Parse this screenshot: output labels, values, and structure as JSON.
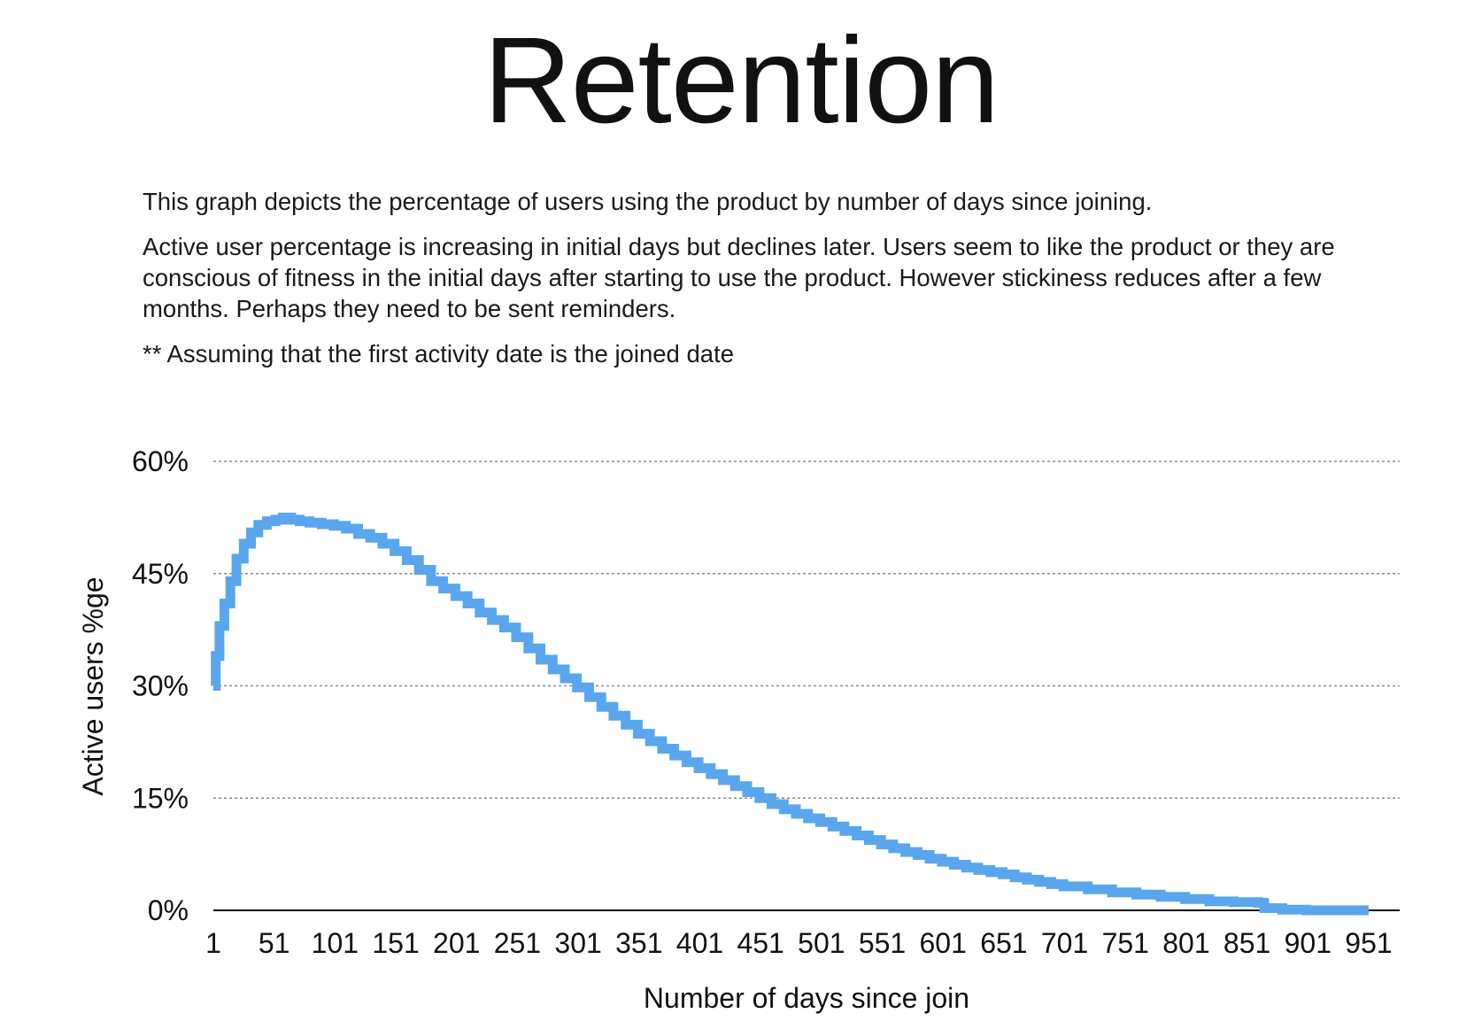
{
  "page": {
    "title": "Retention",
    "paragraphs": [
      "This graph depicts the percentage of users using the product by number of days since joining.",
      "Active user percentage is increasing in initial days but declines later. Users seem to like the product or they are conscious of fitness in the initial days after starting to use the product. However stickiness reduces after a few months. Perhaps they need to be sent reminders.",
      "** Assuming that the first activity date is the joined date"
    ]
  },
  "chart_data": {
    "type": "line",
    "title": "",
    "xlabel": "Number of days since join",
    "ylabel": "Active users %ge",
    "xlim": [
      1,
      951
    ],
    "ylim": [
      0,
      60
    ],
    "x_ticks": [
      "1",
      "51",
      "101",
      "151",
      "201",
      "251",
      "301",
      "351",
      "401",
      "451",
      "501",
      "551",
      "601",
      "651",
      "701",
      "751",
      "801",
      "851",
      "901",
      "951"
    ],
    "y_ticks": [
      "0%",
      "15%",
      "30%",
      "45%",
      "60%"
    ],
    "grid": "horizontal-dotted",
    "line_color": "#5aa6ee",
    "series": [
      {
        "x": [
          1,
          3,
          6,
          10,
          15,
          20,
          26,
          32,
          38,
          45,
          52,
          58,
          65,
          72,
          80,
          90,
          100,
          110,
          120,
          130,
          140,
          150,
          160,
          170,
          180,
          190,
          200,
          210,
          220,
          230,
          240,
          250,
          260,
          270,
          280,
          290,
          300,
          310,
          320,
          330,
          340,
          350,
          360,
          370,
          380,
          390,
          400,
          410,
          420,
          430,
          440,
          450,
          460,
          470,
          480,
          490,
          500,
          510,
          520,
          530,
          540,
          550,
          560,
          570,
          580,
          590,
          600,
          610,
          620,
          630,
          640,
          650,
          660,
          670,
          680,
          690,
          700,
          720,
          740,
          760,
          780,
          800,
          820,
          840,
          860,
          865,
          880,
          900,
          920,
          940,
          951
        ],
        "y": [
          30,
          34,
          38,
          41,
          44,
          47,
          49,
          50.5,
          51.5,
          52,
          52.2,
          52.5,
          52.2,
          52,
          51.8,
          51.6,
          51.4,
          51,
          50.3,
          49.8,
          49,
          48,
          46.8,
          45.5,
          44,
          43,
          42,
          41,
          39.8,
          38.8,
          37.8,
          36.5,
          35,
          33.5,
          32.2,
          31,
          29.8,
          28.5,
          27.2,
          26,
          24.8,
          23.6,
          22.6,
          21.6,
          20.7,
          19.8,
          19,
          18.2,
          17.4,
          16.6,
          15.8,
          15,
          14.2,
          13.5,
          12.9,
          12.3,
          11.8,
          11.2,
          10.6,
          10,
          9.4,
          8.8,
          8.3,
          7.8,
          7.4,
          6.9,
          6.5,
          6.1,
          5.7,
          5.4,
          5.1,
          4.8,
          4.4,
          4.1,
          3.8,
          3.5,
          3.2,
          2.8,
          2.4,
          2.1,
          1.8,
          1.5,
          1.2,
          1.1,
          1,
          0.3,
          0.1,
          0,
          0,
          0,
          0
        ]
      }
    ]
  }
}
